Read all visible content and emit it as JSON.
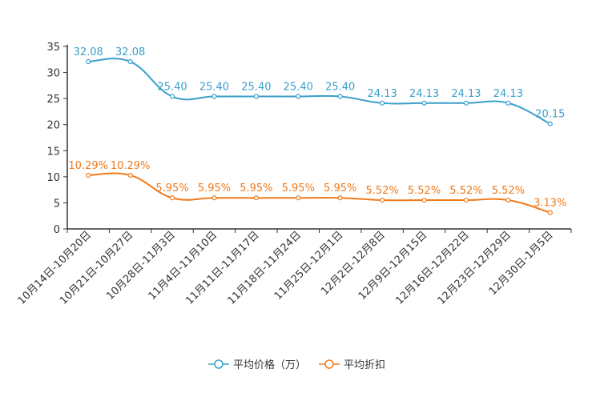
{
  "chart_data": {
    "type": "line",
    "categories": [
      "10月14日-10月20日",
      "10月21日-10月27日",
      "10月28日-11月3日",
      "11月4日-11月10日",
      "11月11日-11月17日",
      "11月18日-11月24日",
      "11月25日-12月1日",
      "12月2日-12月8日",
      "12月9日-12月15日",
      "12月16日-12月22日",
      "12月23日-12月29日",
      "12月30日-1月5日"
    ],
    "ylim": [
      0,
      35
    ],
    "yticks": [
      0,
      5,
      10,
      15,
      20,
      25,
      30,
      35
    ],
    "series": [
      {
        "name": "平均价格（万）",
        "color": "#3a9fca",
        "values": [
          32.08,
          32.08,
          25.4,
          25.4,
          25.4,
          25.4,
          25.4,
          24.13,
          24.13,
          24.13,
          24.13,
          20.15
        ],
        "labels": [
          "32.08",
          "32.08",
          "25.40",
          "25.40",
          "25.40",
          "25.40",
          "25.40",
          "24.13",
          "24.13",
          "24.13",
          "24.13",
          "20.15"
        ]
      },
      {
        "name": "平均折扣",
        "color": "#f07a1a",
        "values": [
          10.29,
          10.29,
          5.95,
          5.95,
          5.95,
          5.95,
          5.95,
          5.52,
          5.52,
          5.52,
          5.52,
          3.13
        ],
        "labels": [
          "10.29%",
          "10.29%",
          "5.95%",
          "5.95%",
          "5.95%",
          "5.95%",
          "5.95%",
          "5.52%",
          "5.52%",
          "5.52%",
          "5.52%",
          "3.13%"
        ]
      }
    ],
    "legend": "bottom-center",
    "grid": false
  }
}
